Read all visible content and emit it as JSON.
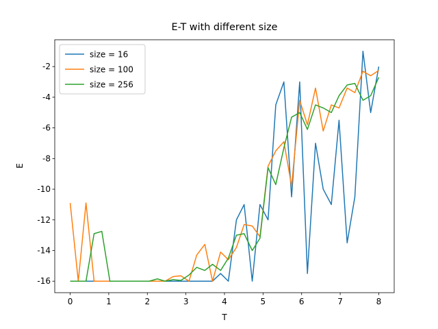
{
  "chart_data": {
    "type": "line",
    "title": "E-T with different size",
    "xlabel": "T",
    "ylabel": "E",
    "x": [
      0,
      0.21,
      0.41,
      0.62,
      0.82,
      1.03,
      1.23,
      1.44,
      1.64,
      1.85,
      2.05,
      2.26,
      2.46,
      2.67,
      2.87,
      3.08,
      3.28,
      3.49,
      3.69,
      3.9,
      4.1,
      4.31,
      4.51,
      4.72,
      4.92,
      5.13,
      5.33,
      5.54,
      5.74,
      5.95,
      6.15,
      6.36,
      6.56,
      6.77,
      6.97,
      7.18,
      7.38,
      7.59,
      7.79,
      8
    ],
    "series": [
      {
        "name": "size = 16",
        "color": "#1f77b4",
        "values": [
          -16,
          -16,
          -16,
          -16,
          -16,
          -16,
          -16,
          -16,
          -16,
          -16,
          -16,
          -16,
          -16,
          -16,
          -16,
          -16,
          -16,
          -16,
          -16,
          -15.5,
          -16,
          -12,
          -11,
          -16,
          -11,
          -12,
          -4.5,
          -3,
          -10.5,
          -3,
          -15.5,
          -7,
          -10,
          -11,
          -5.5,
          -13.5,
          -10.5,
          -1,
          -5,
          -2
        ]
      },
      {
        "name": "size = 100",
        "color": "#ff7f0e",
        "values": [
          -10.9,
          -16,
          -10.9,
          -16,
          -16,
          -16,
          -16,
          -16,
          -16,
          -16,
          -16,
          -16,
          -16,
          -15.7,
          -15.65,
          -16,
          -14.3,
          -13.6,
          -16,
          -14.1,
          -14.6,
          -13.8,
          -12.3,
          -12.4,
          -13.1,
          -8.5,
          -7.5,
          -6.9,
          -9.8,
          -4.2,
          -5.8,
          -3.4,
          -6.2,
          -4.5,
          -4.7,
          -3.4,
          -3.7,
          -2.3,
          -2.6,
          -2.25
        ]
      },
      {
        "name": "size = 256",
        "color": "#2ca02c",
        "values": [
          -16,
          -16,
          -16,
          -12.9,
          -12.75,
          -16,
          -16,
          -16,
          -16,
          -16,
          -16,
          -15.85,
          -16,
          -15.9,
          -15.95,
          -15.6,
          -15.1,
          -15.3,
          -14.9,
          -15.3,
          -14.5,
          -13,
          -12.9,
          -14,
          -13.2,
          -8.6,
          -9.7,
          -7.3,
          -5.3,
          -5.0,
          -6.1,
          -4.5,
          -4.7,
          -5.0,
          -3.9,
          -3.2,
          -3.1,
          -4.2,
          -3.9,
          -2.7
        ]
      }
    ],
    "xlim": [
      -0.4,
      8.4
    ],
    "ylim": [
      -16.75,
      -0.25
    ],
    "xticks": [
      0,
      1,
      2,
      3,
      4,
      5,
      6,
      7,
      8
    ],
    "yticks": [
      -16,
      -14,
      -12,
      -10,
      -8,
      -6,
      -4,
      -2
    ],
    "legend": "upper left"
  }
}
